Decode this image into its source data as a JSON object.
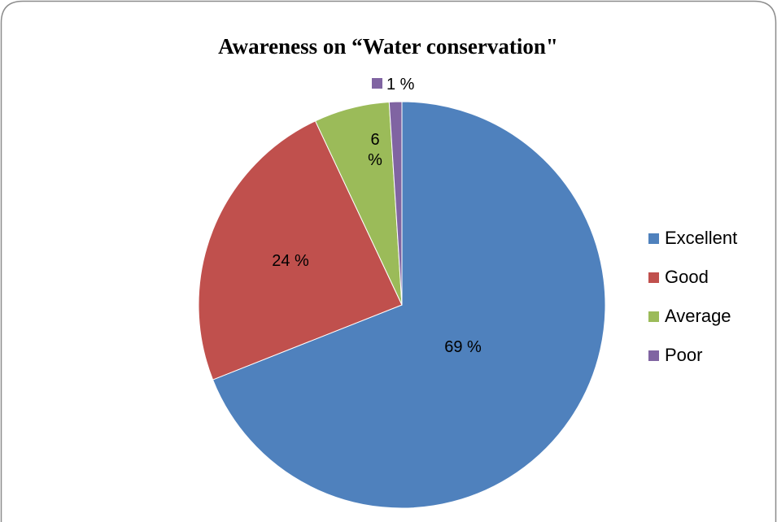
{
  "chart_data": {
    "type": "pie",
    "title": "Awareness on “Water conservation\"",
    "categories": [
      "Excellent",
      "Good",
      "Average",
      "Poor"
    ],
    "values": [
      69,
      24,
      6,
      1
    ],
    "data_labels": [
      "69 %",
      "24 %",
      "6 %",
      "1 %"
    ],
    "colors": [
      "#4F81BD",
      "#C0504D",
      "#9BBB59",
      "#8064A2"
    ],
    "legend_position": "right",
    "start_angle": "top, clockwise"
  }
}
